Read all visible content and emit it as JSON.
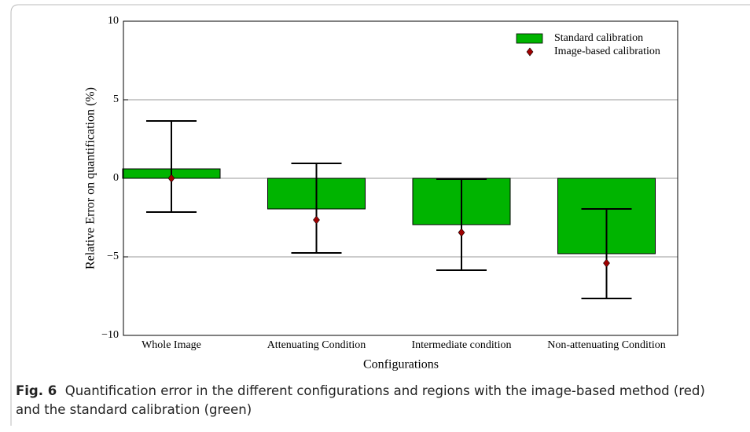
{
  "chart_data": {
    "type": "bar",
    "ylabel": "Relative Error on quantification (%)",
    "xlabel": "Configurations",
    "categories": [
      "Whole Image",
      "Attenuating Condition",
      "Intermediate condition",
      "Non-attenuating Condition"
    ],
    "series": [
      {
        "name": "Standard calibration",
        "color": "#00b400",
        "values": [
          0.6,
          -1.95,
          -2.95,
          -4.8
        ]
      },
      {
        "name": "Image-based calibration",
        "color": "#a00000",
        "values": [
          0,
          -2.65,
          -3.45,
          -5.4
        ],
        "error_plus": [
          3.65,
          3.6,
          3.4,
          3.45
        ],
        "error_minus": [
          2.15,
          2.1,
          2.4,
          2.25
        ]
      }
    ],
    "ylim": [
      -10,
      10
    ],
    "yticks": [
      {
        "value": -10,
        "label": "−10"
      },
      {
        "value": -5,
        "label": "−5"
      },
      0,
      5,
      10
    ],
    "grid": true,
    "legend": "upper right"
  },
  "caption": {
    "label": "Fig. 6",
    "text": "Quantification error in the different configurations and regions with the image-based method (red)",
    "text_line2": "and the standard calibration (green)"
  }
}
